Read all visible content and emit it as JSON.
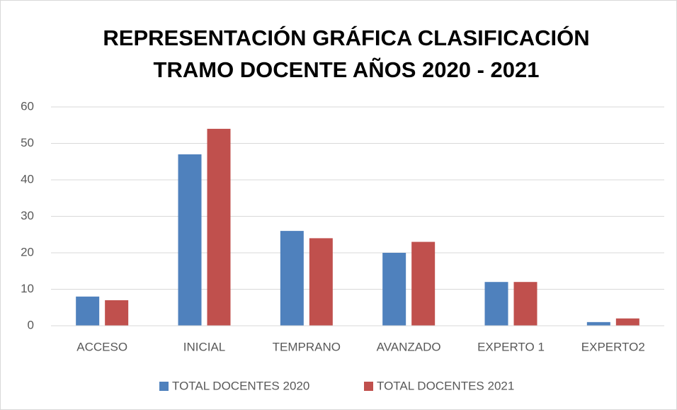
{
  "chart_data": {
    "type": "bar",
    "title": [
      "REPRESENTACIÓN GRÁFICA  CLASIFICACIÓN",
      "TRAMO DOCENTE AÑOS 2020 - 2021"
    ],
    "categories": [
      "ACCESO",
      "INICIAL",
      "TEMPRANO",
      "AVANZADO",
      "EXPERTO 1",
      "EXPERTO2"
    ],
    "series": [
      {
        "name": "TOTAL DOCENTES 2020",
        "color": "#4f81bd",
        "values": [
          8,
          47,
          26,
          20,
          12,
          1
        ]
      },
      {
        "name": "TOTAL DOCENTES 2021",
        "color": "#c0504d",
        "values": [
          7,
          54,
          24,
          23,
          12,
          2
        ]
      }
    ],
    "ylim": [
      0,
      60
    ],
    "yticks": [
      0,
      10,
      20,
      30,
      40,
      50,
      60
    ],
    "grid": true,
    "legend": "bottom"
  }
}
